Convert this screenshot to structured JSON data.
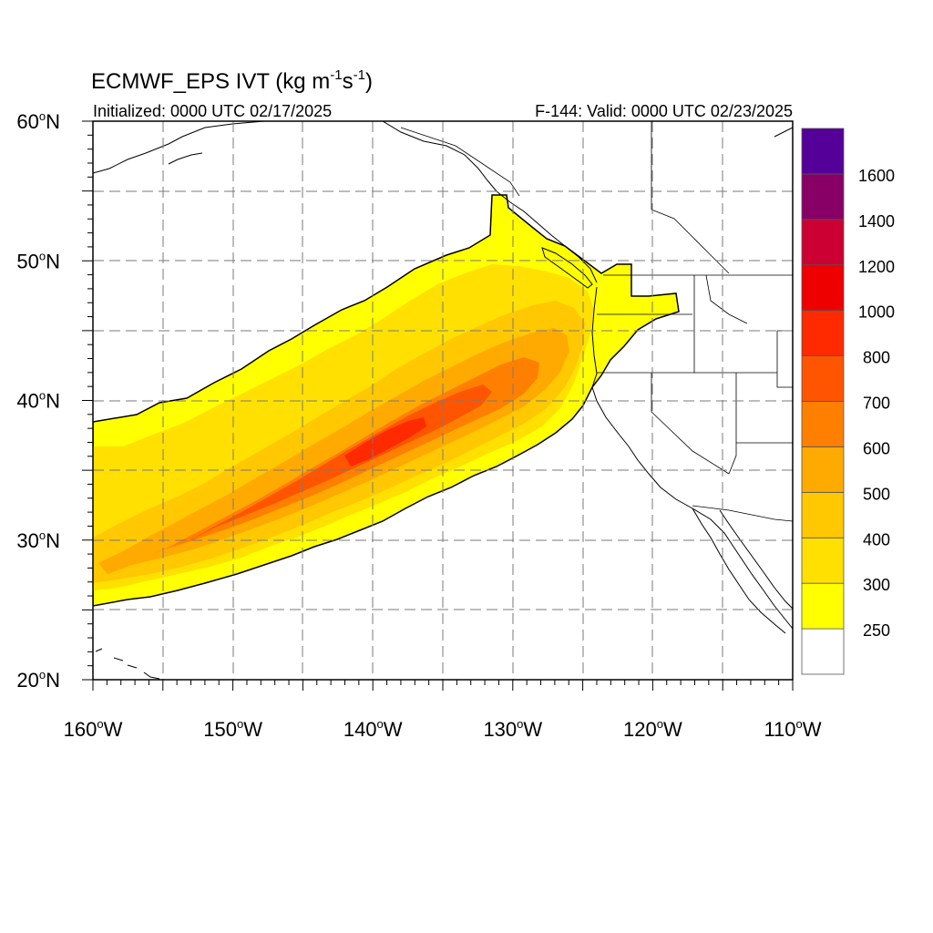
{
  "header": {
    "title_main": "ECMWF_EPS IVT (kg m",
    "title_sup1": "-1",
    "title_mid": "s",
    "title_sup2": "-1",
    "title_end": ")",
    "initialized": "Initialized: 0000 UTC 02/17/2025",
    "valid": "F-144: Valid: 0000 UTC 02/23/2025"
  },
  "axes": {
    "lat_ticks": [
      {
        "value": 60,
        "num": "60",
        "deg": "o",
        "hem": "N"
      },
      {
        "value": 50,
        "num": "50",
        "deg": "o",
        "hem": "N"
      },
      {
        "value": 40,
        "num": "40",
        "deg": "o",
        "hem": "N"
      },
      {
        "value": 30,
        "num": "30",
        "deg": "o",
        "hem": "N"
      },
      {
        "value": 20,
        "num": "20",
        "deg": "o",
        "hem": "N"
      }
    ],
    "lon_ticks": [
      {
        "value": -160,
        "num": "160",
        "deg": "o",
        "hem": "W"
      },
      {
        "value": -150,
        "num": "150",
        "deg": "o",
        "hem": "W"
      },
      {
        "value": -140,
        "num": "140",
        "deg": "o",
        "hem": "W"
      },
      {
        "value": -130,
        "num": "130",
        "deg": "o",
        "hem": "W"
      },
      {
        "value": -120,
        "num": "120",
        "deg": "o",
        "hem": "W"
      },
      {
        "value": -110,
        "num": "110",
        "deg": "o",
        "hem": "W"
      }
    ],
    "lat_range": [
      20,
      60
    ],
    "lon_range": [
      -160,
      -110
    ],
    "grid": "dashed every 5 degrees"
  },
  "colorbar": {
    "levels": [
      {
        "label": "",
        "color": "#ffffff"
      },
      {
        "label": "250",
        "color": "#ffff00"
      },
      {
        "label": "300",
        "color": "#ffe000"
      },
      {
        "label": "400",
        "color": "#ffc800"
      },
      {
        "label": "500",
        "color": "#ffaa00"
      },
      {
        "label": "600",
        "color": "#ff8000"
      },
      {
        "label": "700",
        "color": "#ff5500"
      },
      {
        "label": "800",
        "color": "#ff2a00"
      },
      {
        "label": "1000",
        "color": "#ee0000"
      },
      {
        "label": "1200",
        "color": "#cc0033"
      },
      {
        "label": "1400",
        "color": "#880066"
      },
      {
        "label": "1600",
        "color": "#550099"
      }
    ]
  }
}
